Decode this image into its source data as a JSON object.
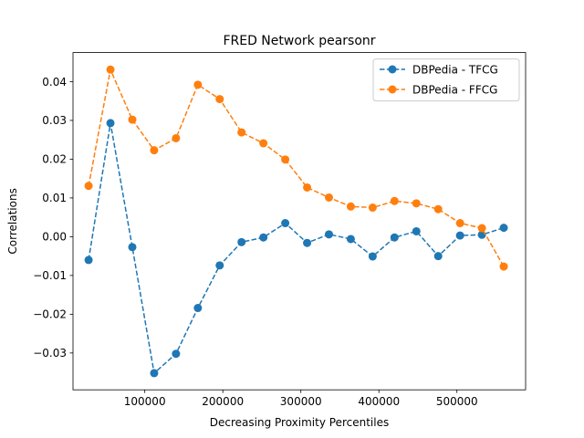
{
  "chart_data": {
    "type": "line",
    "title": "FRED Network pearsonr",
    "xlabel": "Decreasing Proximity Percentiles",
    "ylabel": "Correlations",
    "xlim": [
      8000,
      588000
    ],
    "ylim": [
      -0.0395,
      0.0475
    ],
    "xticks": [
      100000,
      200000,
      300000,
      400000,
      500000
    ],
    "xtick_labels": [
      "100000",
      "200000",
      "300000",
      "400000",
      "500000"
    ],
    "yticks": [
      -0.03,
      -0.02,
      -0.01,
      0.0,
      0.01,
      0.02,
      0.03,
      0.04
    ],
    "ytick_labels": [
      "−0.03",
      "−0.02",
      "−0.01",
      "0.00",
      "0.01",
      "0.02",
      "0.03",
      "0.04"
    ],
    "grid": false,
    "legend_position": "top-right",
    "series": [
      {
        "name": "DBPedia - TFCG",
        "color": "#1f77b4",
        "linestyle": "dashed",
        "marker": "circle",
        "x": [
          28000,
          56000,
          84000,
          112000,
          140000,
          168000,
          196000,
          224000,
          252000,
          280000,
          308000,
          336000,
          364000,
          392000,
          420000,
          448000,
          476000,
          504000,
          532000,
          560000
        ],
        "y": [
          -0.006,
          0.0293,
          -0.0027,
          -0.0352,
          -0.0302,
          -0.0184,
          -0.0074,
          -0.0014,
          -0.0002,
          0.0035,
          -0.0016,
          0.0006,
          -0.0006,
          -0.0051,
          -0.0002,
          0.0014,
          -0.005,
          0.0003,
          0.0005,
          0.0023
        ]
      },
      {
        "name": "DBPedia - FFCG",
        "color": "#ff7f0e",
        "linestyle": "dashed",
        "marker": "circle",
        "x": [
          28000,
          56000,
          84000,
          112000,
          140000,
          168000,
          196000,
          224000,
          252000,
          280000,
          308000,
          336000,
          364000,
          392000,
          420000,
          448000,
          476000,
          504000,
          532000,
          560000
        ],
        "y": [
          0.0131,
          0.0431,
          0.0302,
          0.0223,
          0.0254,
          0.0392,
          0.0355,
          0.0269,
          0.0241,
          0.0199,
          0.0127,
          0.0101,
          0.0078,
          0.0075,
          0.0092,
          0.0086,
          0.0071,
          0.0035,
          0.0022,
          -0.0077
        ]
      }
    ]
  }
}
